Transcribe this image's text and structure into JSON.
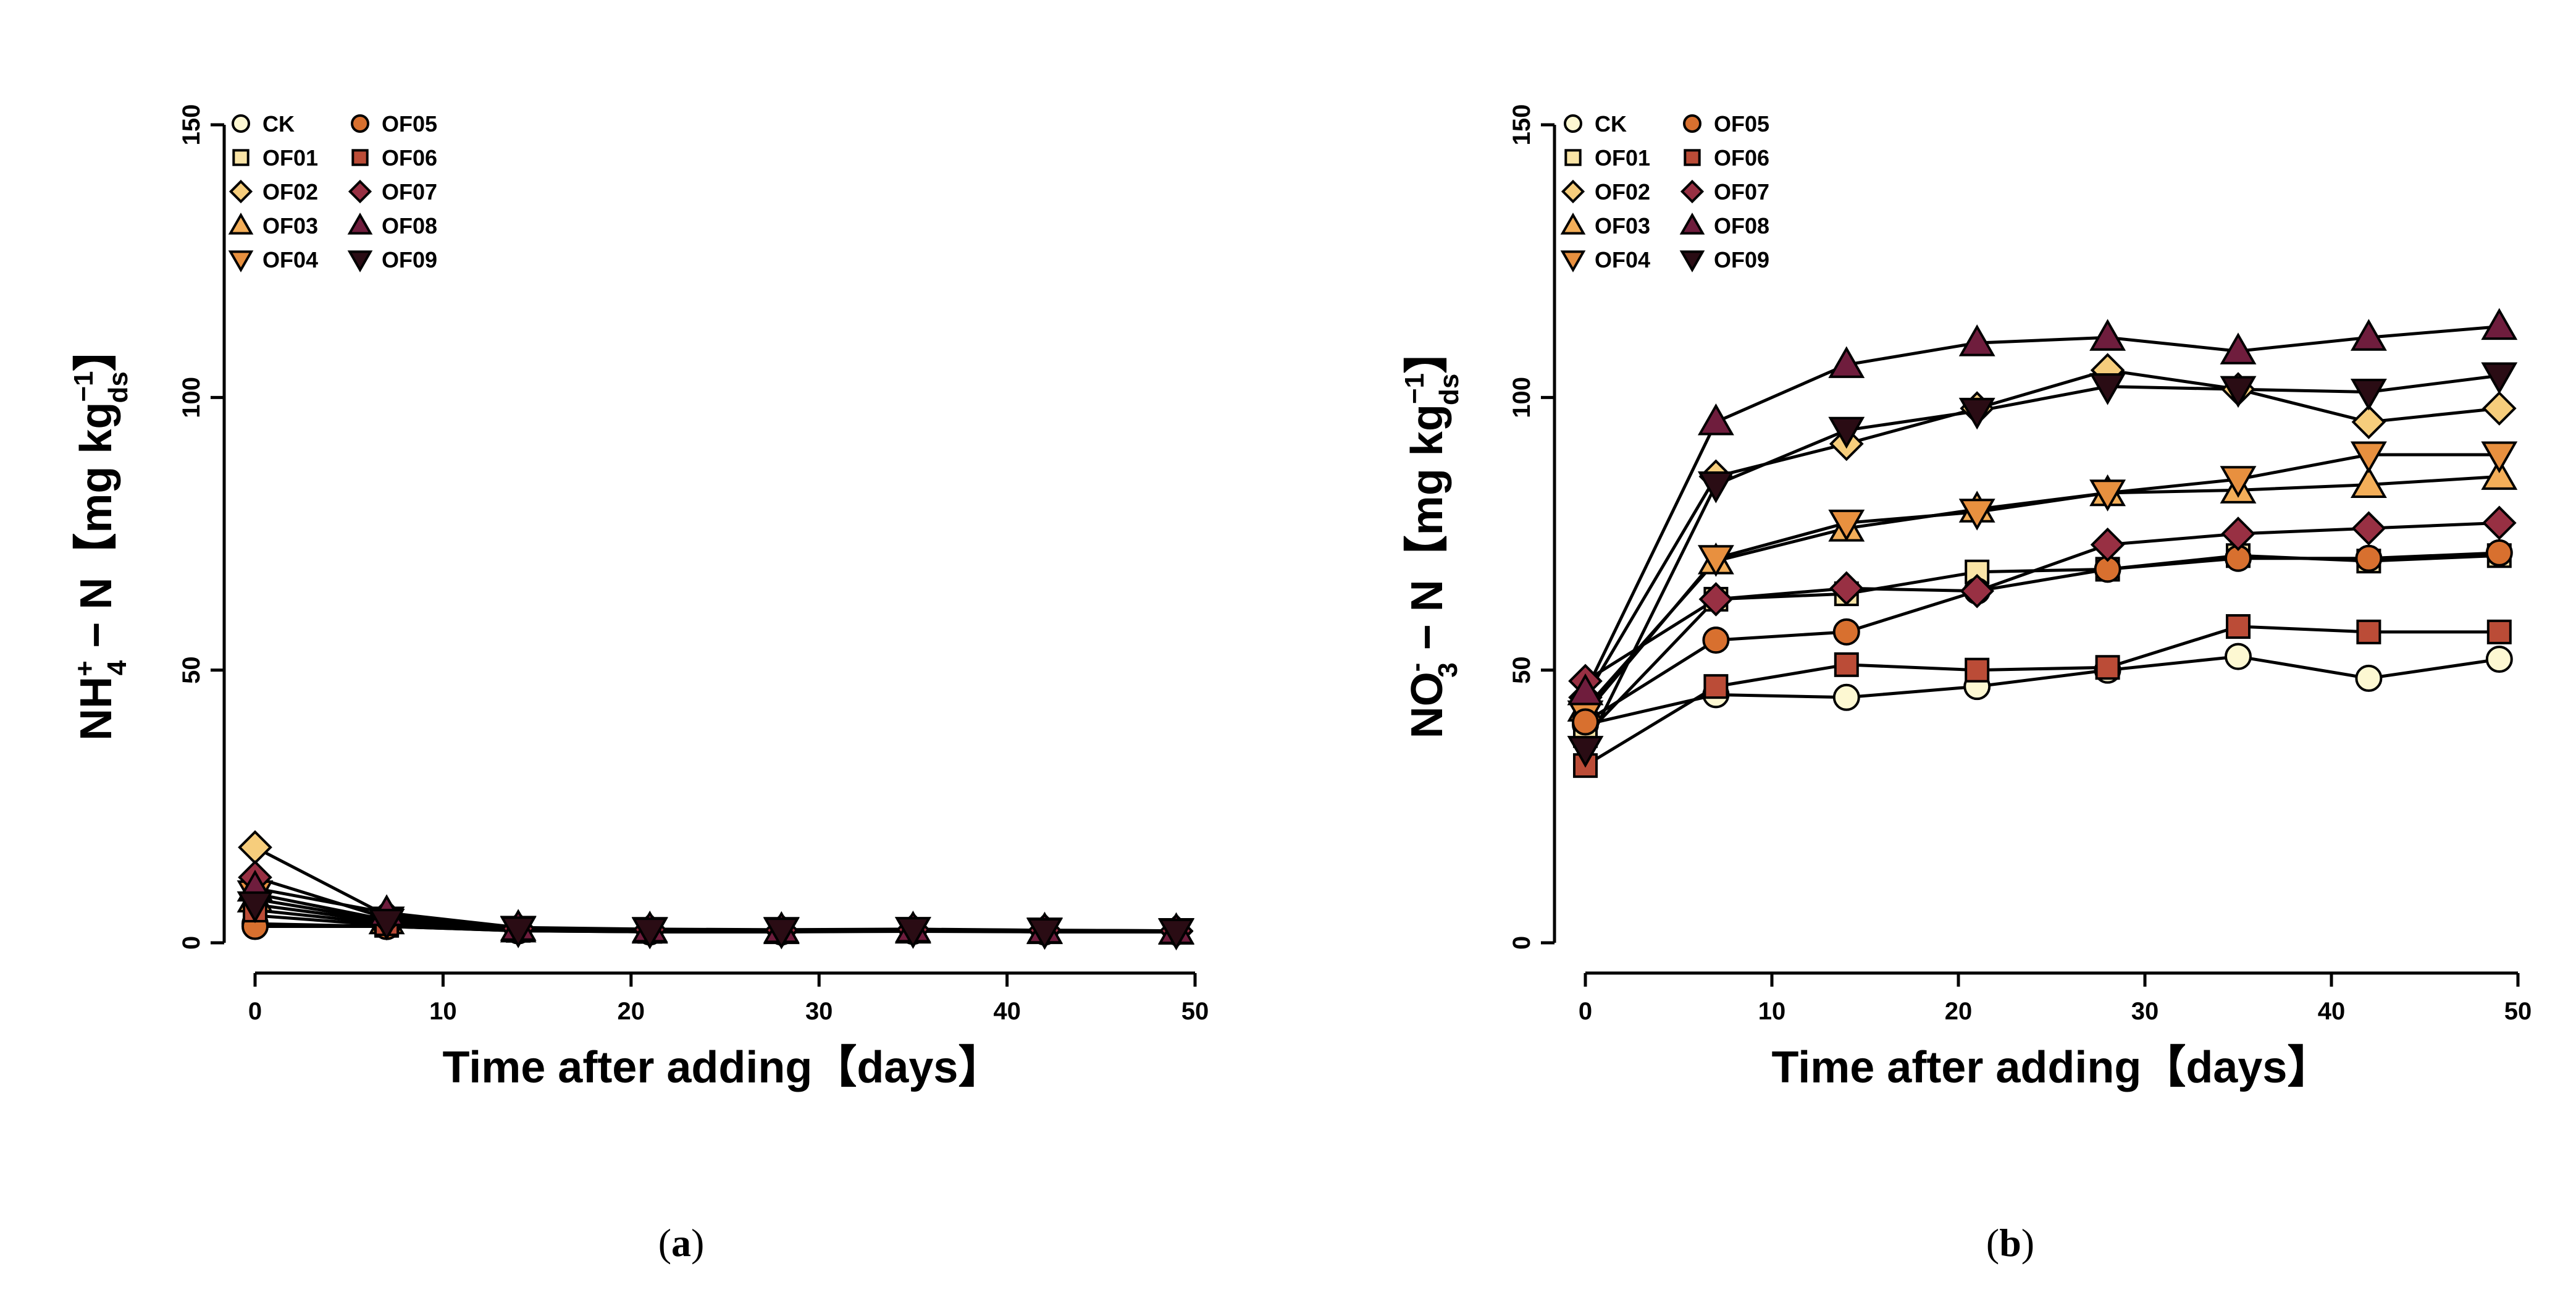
{
  "chart_data": [
    {
      "type": "line",
      "caption": "a",
      "xlabel": "Time after adding【days】",
      "ylabel": {
        "main": "NH",
        "sub": "4",
        "sup": "+",
        "rest": "− N【mg kg",
        "unit_sup": "−1",
        "unit_sub": "ds",
        "close": "】"
      },
      "xlim": [
        0,
        50
      ],
      "ylim": [
        0,
        150
      ],
      "xticks": [
        "0",
        "10",
        "20",
        "30",
        "40",
        "50"
      ],
      "yticks": [
        "0",
        "50",
        "100",
        "150"
      ],
      "x": [
        0,
        7,
        14,
        21,
        28,
        35,
        42,
        49
      ],
      "series": [
        {
          "name": "CK",
          "values": [
            3.5,
            3.0,
            2.2,
            2.0,
            2.0,
            2.2,
            2.0,
            2.0
          ]
        },
        {
          "name": "OF01",
          "values": [
            5.0,
            3.2,
            2.3,
            2.1,
            2.1,
            2.2,
            2.1,
            2.0
          ]
        },
        {
          "name": "OF02",
          "values": [
            17.5,
            5.0,
            2.5,
            2.3,
            2.2,
            2.4,
            2.2,
            2.1
          ]
        },
        {
          "name": "OF03",
          "values": [
            8.0,
            4.0,
            2.5,
            2.3,
            2.2,
            2.3,
            2.2,
            2.1
          ]
        },
        {
          "name": "OF04",
          "values": [
            9.0,
            4.2,
            2.5,
            2.3,
            2.3,
            2.3,
            2.2,
            2.1
          ]
        },
        {
          "name": "OF05",
          "values": [
            3.0,
            3.0,
            2.2,
            2.0,
            2.0,
            2.1,
            2.0,
            2.0
          ]
        },
        {
          "name": "OF06",
          "values": [
            6.0,
            3.5,
            2.3,
            2.1,
            2.1,
            2.2,
            2.1,
            2.0
          ]
        },
        {
          "name": "OF07",
          "values": [
            12.0,
            4.5,
            2.6,
            2.4,
            2.3,
            2.4,
            2.3,
            2.2
          ]
        },
        {
          "name": "OF08",
          "values": [
            10.0,
            5.5,
            2.8,
            2.5,
            2.4,
            2.5,
            2.3,
            2.2
          ]
        },
        {
          "name": "OF09",
          "values": [
            7.0,
            3.8,
            2.4,
            2.2,
            2.2,
            2.3,
            2.1,
            2.0
          ]
        }
      ]
    },
    {
      "type": "line",
      "caption": "b",
      "xlabel": "Time after adding【days】",
      "ylabel": {
        "main": "NO",
        "sub": "3",
        "sup": "-",
        "rest": "− N【mg kg",
        "unit_sup": "−1",
        "unit_sub": "ds",
        "close": "】"
      },
      "xlim": [
        0,
        50
      ],
      "ylim": [
        0,
        150
      ],
      "xticks": [
        "0",
        "10",
        "20",
        "30",
        "40",
        "50"
      ],
      "yticks": [
        "0",
        "50",
        "100",
        "150"
      ],
      "x": [
        0,
        7,
        14,
        21,
        28,
        35,
        42,
        49
      ],
      "series": [
        {
          "name": "CK",
          "values": [
            40,
            45.5,
            45,
            47,
            50,
            52.5,
            48.5,
            52
          ]
        },
        {
          "name": "OF01",
          "values": [
            38,
            63,
            64,
            68,
            68.5,
            71,
            70,
            71
          ]
        },
        {
          "name": "OF02",
          "values": [
            45,
            85.5,
            91.5,
            98,
            105,
            101.5,
            95.5,
            98
          ]
        },
        {
          "name": "OF03",
          "values": [
            43,
            70,
            76,
            79.5,
            82.5,
            83,
            84,
            85.5
          ]
        },
        {
          "name": "OF04",
          "values": [
            42,
            70.5,
            77,
            79,
            82.5,
            85,
            89.5,
            89.5
          ]
        },
        {
          "name": "OF05",
          "values": [
            40.5,
            55.5,
            57,
            64.5,
            68.5,
            70.5,
            70.5,
            71.5
          ]
        },
        {
          "name": "OF06",
          "values": [
            32.5,
            47,
            51,
            50,
            50.5,
            58,
            57,
            57
          ]
        },
        {
          "name": "OF07",
          "values": [
            48,
            63,
            65,
            64.5,
            73,
            75,
            76,
            77
          ]
        },
        {
          "name": "OF08",
          "values": [
            46,
            95.5,
            106,
            110,
            111,
            108.5,
            111,
            113
          ]
        },
        {
          "name": "OF09",
          "values": [
            35.5,
            84,
            94,
            97.5,
            102,
            101.5,
            101,
            104
          ]
        }
      ]
    }
  ],
  "legend": [
    {
      "name": "CK",
      "marker": "circle",
      "color": "#fdf8d2"
    },
    {
      "name": "OF01",
      "marker": "square",
      "color": "#f9e4a6"
    },
    {
      "name": "OF02",
      "marker": "diamond",
      "color": "#f6cd7c"
    },
    {
      "name": "OF03",
      "marker": "triangle",
      "color": "#f3ae59"
    },
    {
      "name": "OF04",
      "marker": "triangle-down",
      "color": "#e8903f"
    },
    {
      "name": "OF05",
      "marker": "circle",
      "color": "#d8702f"
    },
    {
      "name": "OF06",
      "marker": "square",
      "color": "#bb4c37"
    },
    {
      "name": "OF07",
      "marker": "diamond",
      "color": "#983043"
    },
    {
      "name": "OF08",
      "marker": "triangle",
      "color": "#6f1d3d"
    },
    {
      "name": "OF09",
      "marker": "triangle-down",
      "color": "#2a0c14"
    }
  ]
}
